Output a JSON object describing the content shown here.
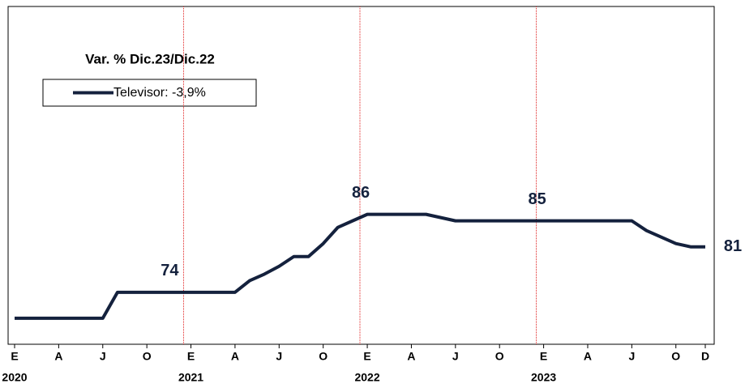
{
  "chart_data": {
    "type": "line",
    "legend_title": "Var. % Dic.23/Dic.22",
    "categories": [
      "E",
      null,
      null,
      "A",
      null,
      null,
      "J",
      null,
      null,
      "O",
      null,
      null,
      "E",
      null,
      null,
      "A",
      null,
      null,
      "J",
      null,
      null,
      "O",
      null,
      null,
      "E",
      null,
      null,
      "A",
      null,
      null,
      "J",
      null,
      null,
      "O",
      null,
      null,
      "E",
      null,
      null,
      "A",
      null,
      null,
      "J",
      null,
      null,
      "O",
      null,
      "D"
    ],
    "category_years": [
      "2020",
      null,
      null,
      null,
      null,
      null,
      null,
      null,
      null,
      null,
      null,
      null,
      "2021",
      null,
      null,
      null,
      null,
      null,
      null,
      null,
      null,
      null,
      null,
      null,
      "2022",
      null,
      null,
      null,
      null,
      null,
      null,
      null,
      null,
      null,
      null,
      null,
      "2023",
      null,
      null,
      null,
      null,
      null,
      null,
      null,
      null,
      null,
      null,
      null
    ],
    "series": [
      {
        "name": "Televisor: -3,9%",
        "color": "#14213d",
        "values": [
          70,
          70,
          70,
          70,
          70,
          70,
          70,
          74,
          74,
          74,
          74,
          74,
          74,
          74,
          74,
          74,
          75.8,
          76.8,
          78,
          79.5,
          79.5,
          81.5,
          84,
          85,
          86,
          86,
          86,
          86,
          86,
          85.5,
          85,
          85,
          85,
          85,
          85,
          85,
          85,
          85,
          85,
          85,
          85,
          85,
          85,
          83.5,
          82.5,
          81.5,
          81,
          81
        ],
        "value_labels": [
          null,
          null,
          null,
          null,
          null,
          null,
          null,
          null,
          null,
          null,
          null,
          "74",
          null,
          null,
          null,
          null,
          null,
          null,
          null,
          null,
          null,
          null,
          null,
          null,
          "86",
          null,
          null,
          null,
          null,
          null,
          null,
          null,
          null,
          null,
          null,
          null,
          "85",
          null,
          null,
          null,
          null,
          null,
          null,
          null,
          null,
          null,
          null,
          "81"
        ]
      }
    ],
    "ylim": [
      66,
      118
    ],
    "year_separators": true,
    "separator_color": "#e02020"
  }
}
